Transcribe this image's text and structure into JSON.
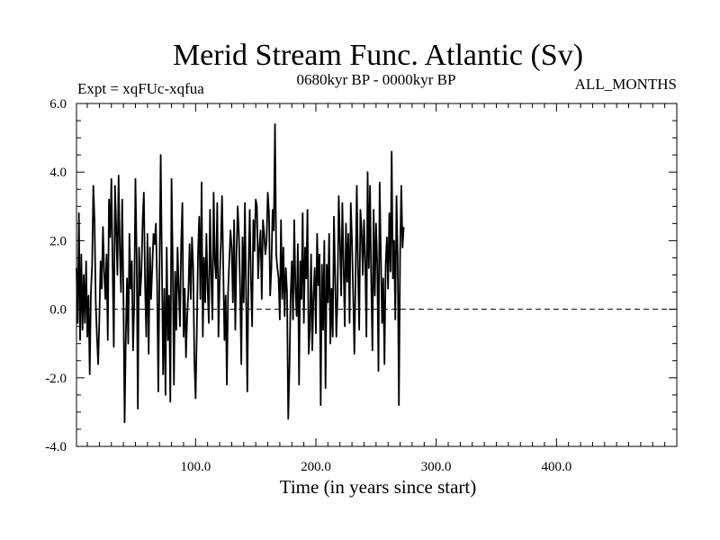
{
  "chart_data": {
    "type": "line",
    "title": "Merid Stream Func. Atlantic (Sv)",
    "left_label": "Expt = xqFUc-xqfua",
    "center_label": "0680kyr BP - 0000kyr BP",
    "right_label": "ALL_MONTHS",
    "xlabel": "Time (in years since start)",
    "ylabel": "",
    "xlim": [
      1,
      500
    ],
    "ylim": [
      -4.0,
      6.0
    ],
    "x_ticks": [
      100,
      200,
      300,
      400
    ],
    "x_tick_labels": [
      "100.0",
      "200.0",
      "300.0",
      "400.0"
    ],
    "y_ticks": [
      -4,
      -2,
      0,
      2,
      4,
      6
    ],
    "y_tick_labels": [
      "-4.0",
      "-2.0",
      "0.0",
      "2.0",
      "4.0",
      "6.0"
    ],
    "zero_line": 0.0,
    "series": [
      {
        "name": "Merid Stream Func. Atlantic",
        "x_start": 1,
        "x_step": 1,
        "color": "#000000",
        "values": [
          1.2,
          -0.4,
          2.8,
          -0.9,
          1.6,
          -0.6,
          1.0,
          -0.4,
          1.4,
          -0.8,
          0.4,
          -1.9,
          0.5,
          1.3,
          3.6,
          2.6,
          0.2,
          -0.8,
          -1.6,
          -0.3,
          1.4,
          0.6,
          2.4,
          1.1,
          0.3,
          1.6,
          -0.9,
          3.2,
          2.1,
          3.8,
          1.3,
          -1.1,
          3.6,
          2.4,
          1.0,
          3.9,
          1.8,
          0.5,
          3.2,
          0.4,
          -3.3,
          -0.8,
          0.9,
          -1.0,
          2.2,
          0.6,
          1.4,
          -1.2,
          0.2,
          3.8,
          1.6,
          -2.9,
          1.8,
          0.4,
          1.1,
          2.6,
          3.4,
          0.7,
          -0.8,
          2.2,
          -1.3,
          1.8,
          0.3,
          1.2,
          2.2,
          1.9,
          2.5,
          0.8,
          -2.4,
          1.1,
          4.5,
          1.3,
          -1.9,
          0.6,
          -2.5,
          1.8,
          -0.9,
          0.4,
          -2.7,
          3.8,
          1.4,
          -2.2,
          1.1,
          -0.6,
          1.8,
          0.6,
          -0.5,
          1.9,
          3.1,
          -0.8,
          0.6,
          -1.4,
          -0.2,
          0.5,
          1.9,
          0.3,
          2.1,
          1.2,
          -1.5,
          -2.6,
          -0.7,
          1.6,
          2.7,
          0.3,
          3.7,
          -0.8,
          1.5,
          0.2,
          2.2,
          0.6,
          -0.4,
          2.9,
          1.0,
          -0.3,
          3.4,
          1.4,
          0.9,
          3.1,
          -0.8,
          0.8,
          1.9,
          3.3,
          1.2,
          -0.9,
          0.4,
          -2.2,
          0.5,
          1.4,
          2.3,
          1.8,
          0.2,
          2.6,
          -0.6,
          1.6,
          3.0,
          2.2,
          0.6,
          -1.6,
          2.1,
          0.2,
          3.1,
          0.4,
          -2.4,
          1.2,
          2.9,
          0.8,
          -0.5,
          2.6,
          1.7,
          3.2,
          3.0,
          0.9,
          1.8,
          2.3,
          0.3,
          2.6,
          2.2,
          1.6,
          2.0,
          3.4,
          2.8,
          0.4,
          1.2,
          2.9,
          2.3,
          5.4,
          1.6,
          1.2,
          0.9,
          -0.3,
          2.6,
          0.3,
          1.8,
          -0.2,
          1.2,
          0.5,
          -3.2,
          -1.8,
          0.4,
          1.4,
          -0.3,
          2.6,
          0.6,
          -0.2,
          1.9,
          -2.2,
          1.4,
          0.3,
          2.8,
          -0.4,
          1.8,
          0.9,
          2.9,
          -1.3,
          -0.6,
          1.6,
          -1.2,
          0.4,
          1.2,
          -0.7,
          2.2,
          0.7,
          1.6,
          -2.8,
          1.3,
          -0.6,
          2.0,
          -2.3,
          1.3,
          0.2,
          2.2,
          -1.0,
          0.6,
          -0.8,
          2.7,
          1.0,
          -0.8,
          0.4,
          3.3,
          2.0,
          0.4,
          3.1,
          1.3,
          -0.5,
          2.5,
          0.8,
          2.2,
          -0.4,
          3.1,
          2.0,
          0.4,
          -1.3,
          1.0,
          3.6,
          1.2,
          -0.6,
          2.9,
          2.3,
          1.0,
          2.6,
          1.4,
          -0.8,
          4.0,
          1.2,
          3.6,
          0.8,
          -1.2,
          2.9,
          0.4,
          2.5,
          1.3,
          -1.8,
          3.7,
          1.6,
          -0.4,
          0.9,
          -1.6,
          1.3,
          2.1,
          0.6,
          2.8,
          1.1,
          4.6,
          0.9,
          2.0,
          -0.3,
          3.3,
          1.5,
          -2.8,
          1.6,
          3.6,
          1.8,
          2.4
        ]
      }
    ]
  }
}
